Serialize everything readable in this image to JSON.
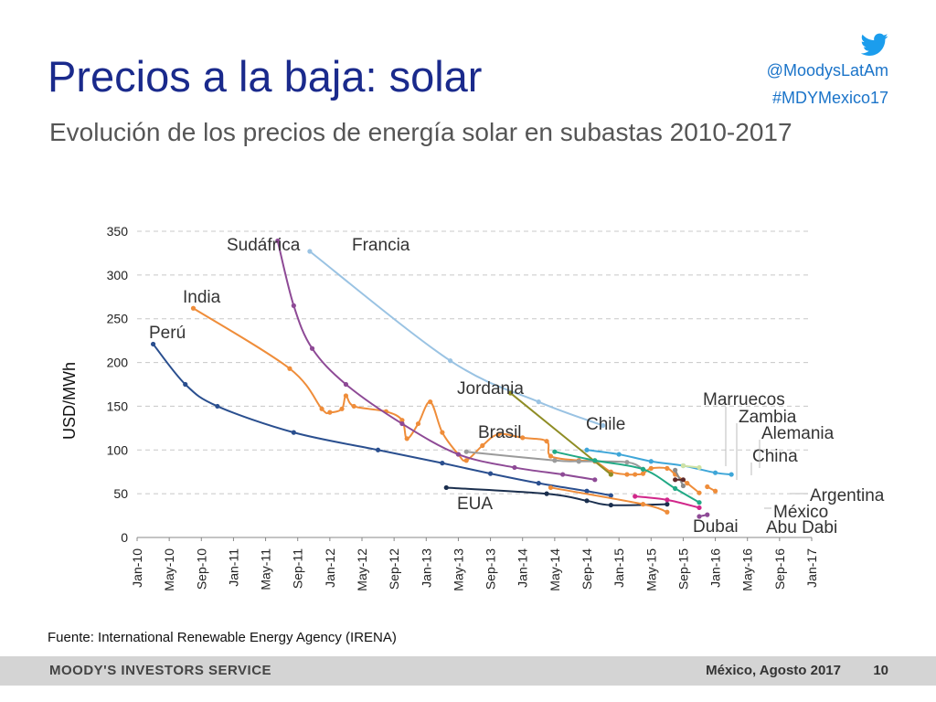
{
  "header": {
    "title": "Precios a la baja: solar",
    "subtitle": "Evolución de los precios de energía solar en subastas 2010-2017",
    "twitter_handle": "@MoodysLatAm",
    "hashtag": "#MDYMexico17"
  },
  "source": "Fuente: International Renewable Energy Agency (IRENA)",
  "footer": {
    "brand": "MOODY'S INVESTORS SERVICE",
    "place_date": "México, Agosto 2017",
    "page_number": "10"
  },
  "colors": {
    "title": "#1a2a8c",
    "link": "#1b74c9",
    "footer_bg": "#d4d4d4"
  },
  "chart_data": {
    "type": "line",
    "title": "",
    "ylabel": "USD/MWh",
    "xlabel": "",
    "ylim": [
      0,
      350
    ],
    "yticks": [
      0,
      50,
      100,
      150,
      200,
      250,
      300,
      350
    ],
    "xticks": [
      "Jan-10",
      "May-10",
      "Sep-10",
      "Jan-11",
      "May-11",
      "Sep-11",
      "Jan-12",
      "May-12",
      "Sep-12",
      "Jan-13",
      "May-13",
      "Sep-13",
      "Jan-14",
      "May-14",
      "Sep-14",
      "Jan-15",
      "May-15",
      "Sep-15",
      "Jan-16",
      "May-16",
      "Sep-16",
      "Jan-17"
    ],
    "x_unit": "months since Jan-10",
    "grid": "horizontal dashed",
    "series": [
      {
        "name": "Perú",
        "color": "#2a4f8f",
        "points": [
          [
            2,
            221
          ],
          [
            6,
            175
          ],
          [
            10,
            150
          ],
          [
            19.5,
            120
          ],
          [
            30,
            100
          ],
          [
            38,
            85
          ],
          [
            44,
            73
          ],
          [
            50,
            62
          ],
          [
            56,
            53
          ],
          [
            59,
            48
          ]
        ]
      },
      {
        "name": "India",
        "color": "#ef8d3a",
        "points": [
          [
            7,
            262
          ],
          [
            19,
            193
          ],
          [
            23,
            147
          ],
          [
            24,
            143
          ],
          [
            25.5,
            147
          ],
          [
            26,
            162
          ],
          [
            27,
            150
          ],
          [
            31,
            144
          ],
          [
            33,
            134
          ],
          [
            33.6,
            113
          ],
          [
            35,
            130
          ],
          [
            36.5,
            155
          ],
          [
            38,
            120
          ],
          [
            40,
            95
          ],
          [
            41,
            88
          ],
          [
            43,
            105
          ],
          [
            45,
            118
          ],
          [
            48,
            114
          ],
          [
            51,
            110
          ],
          [
            51.5,
            93
          ],
          [
            55,
            88
          ],
          [
            57,
            87
          ],
          [
            59,
            75
          ],
          [
            61,
            72
          ],
          [
            62,
            72
          ],
          [
            63,
            73
          ],
          [
            64,
            79
          ],
          [
            66,
            79
          ],
          [
            67,
            72
          ],
          [
            68.5,
            62
          ],
          [
            70,
            51
          ]
        ]
      },
      {
        "name": "Sudáfrica",
        "color": "#8e4a96",
        "points": [
          [
            17.5,
            339
          ],
          [
            19.5,
            265
          ],
          [
            21.8,
            216
          ],
          [
            26,
            175
          ],
          [
            33,
            130
          ],
          [
            40,
            95
          ],
          [
            47,
            80
          ],
          [
            53,
            72
          ],
          [
            57,
            66
          ]
        ]
      },
      {
        "name": "Francia",
        "color": "#9ac3e3",
        "points": [
          [
            21.5,
            327
          ],
          [
            39,
            202
          ],
          [
            50,
            155
          ],
          [
            58,
            128
          ]
        ]
      },
      {
        "name": "Jordania",
        "color": "#8f8d25",
        "points": [
          [
            46.5,
            165
          ],
          [
            59,
            72
          ]
        ]
      },
      {
        "name": "Brasil",
        "color": "#9b9b9b",
        "points": [
          [
            41,
            98
          ],
          [
            52,
            88
          ],
          [
            55,
            87
          ],
          [
            61,
            86
          ],
          [
            63,
            78
          ]
        ]
      },
      {
        "name": "Chile",
        "color": "#21a985",
        "points": [
          [
            52,
            98
          ],
          [
            57,
            88
          ],
          [
            63,
            78
          ],
          [
            67,
            56
          ],
          [
            70,
            40
          ]
        ]
      },
      {
        "name": "EUA",
        "color": "#1b2f4e",
        "points": [
          [
            38.5,
            57
          ],
          [
            51,
            50
          ],
          [
            56,
            42
          ],
          [
            59,
            37
          ],
          [
            66,
            38
          ]
        ]
      },
      {
        "name": "Dubai",
        "color": "#ef8d3a",
        "points": [
          [
            51.5,
            57
          ],
          [
            63,
            38
          ],
          [
            66,
            29
          ]
        ]
      },
      {
        "name": "Marruecos",
        "color": "#8a8a8a",
        "points": [
          [
            67,
            77
          ],
          [
            68,
            59
          ]
        ]
      },
      {
        "name": "Zambia",
        "color": "#5e2a2a",
        "points": [
          [
            67,
            66
          ],
          [
            68,
            66
          ]
        ]
      },
      {
        "name": "Alemania",
        "color": "#3ea6d8",
        "points": [
          [
            56,
            100
          ],
          [
            60,
            95
          ],
          [
            64,
            87
          ],
          [
            68,
            82
          ],
          [
            72,
            74
          ],
          [
            74,
            72
          ]
        ]
      },
      {
        "name": "China",
        "color": "#cfe3a5",
        "points": [
          [
            68,
            82
          ],
          [
            70,
            80
          ]
        ]
      },
      {
        "name": "Argentina",
        "color": "#ef8d3a",
        "points": [
          [
            71,
            58
          ],
          [
            72,
            53
          ]
        ]
      },
      {
        "name": "México",
        "color": "#d1278a",
        "points": [
          [
            62,
            47
          ],
          [
            66,
            43
          ],
          [
            70,
            34
          ]
        ]
      },
      {
        "name": "Abu Dabi",
        "color": "#8e4a96",
        "points": [
          [
            70,
            24
          ],
          [
            71,
            26
          ]
        ]
      }
    ]
  }
}
